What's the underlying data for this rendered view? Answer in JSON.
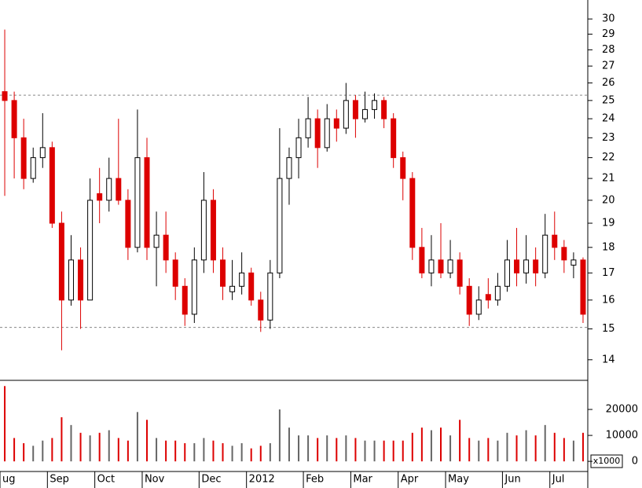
{
  "chart_data": {
    "type": "candlestick",
    "categories": [
      "ug",
      null,
      null,
      null,
      null,
      "Sep",
      null,
      null,
      null,
      null,
      "Oct",
      null,
      null,
      null,
      null,
      "Nov",
      null,
      null,
      null,
      null,
      null,
      "Dec",
      null,
      null,
      null,
      null,
      "2012",
      null,
      null,
      null,
      null,
      null,
      "Feb",
      null,
      null,
      null,
      null,
      "Mar",
      null,
      null,
      null,
      null,
      "Apr",
      null,
      null,
      null,
      null,
      "May",
      null,
      null,
      null,
      null,
      null,
      "Jun",
      null,
      null,
      null,
      null,
      "Jul",
      null,
      null,
      null
    ],
    "open": [
      25.5,
      25,
      23,
      21,
      22,
      22.5,
      19,
      16,
      17.5,
      16,
      20.3,
      20,
      21,
      20,
      18,
      22,
      18,
      18.5,
      17.5,
      16.5,
      15.5,
      17.5,
      20,
      17.5,
      16.3,
      16.5,
      17,
      16,
      15.3,
      17,
      21,
      22,
      23,
      24,
      22.5,
      24,
      23.5,
      25,
      24,
      24.5,
      25,
      24,
      22,
      21,
      18,
      17,
      17.5,
      17,
      17.5,
      16.5,
      15.5,
      16.2,
      16,
      16.5,
      17.5,
      17,
      17.5,
      17,
      18.5,
      18,
      17.3,
      17.5
    ],
    "high": [
      29.3,
      25.5,
      24,
      22.5,
      24.3,
      22.8,
      19.5,
      18.5,
      18,
      21,
      21.5,
      22,
      24,
      20.5,
      24.5,
      23,
      19.5,
      19.5,
      17.8,
      16.8,
      18,
      21.3,
      20.5,
      18,
      17.5,
      17.8,
      17.2,
      16.3,
      17.5,
      23.5,
      22.5,
      24,
      25.2,
      24.5,
      24.8,
      24.5,
      26,
      25.3,
      25.5,
      25.4,
      25.2,
      24.3,
      22.3,
      21.3,
      18.8,
      18.5,
      19,
      18.3,
      17.8,
      16.8,
      16.5,
      16.8,
      17,
      18.3,
      18.8,
      18.5,
      18,
      19.4,
      19.5,
      18.3,
      17.8,
      17.6
    ],
    "low": [
      20.2,
      21,
      20.5,
      20.8,
      21.5,
      18.8,
      14.3,
      15.8,
      15,
      16,
      19,
      19.5,
      19.8,
      17.5,
      17.8,
      17.5,
      16.5,
      17,
      16,
      15.1,
      15.2,
      17,
      17,
      16,
      16,
      16.2,
      15.8,
      14.9,
      15,
      16.8,
      19.8,
      21,
      22.5,
      21.5,
      22.3,
      22.8,
      23.2,
      23,
      23.8,
      24,
      23.5,
      21.5,
      20,
      17.5,
      16.8,
      16.5,
      16.8,
      16.8,
      16.2,
      15.1,
      15.3,
      15.7,
      15.8,
      16.3,
      16.5,
      16.6,
      16.5,
      16.8,
      17.5,
      17,
      16.8,
      15.2
    ],
    "close": [
      25,
      23,
      21,
      22,
      22.5,
      19,
      16,
      17.5,
      16,
      20,
      20,
      21,
      20,
      18,
      22,
      18,
      18.5,
      17.5,
      16.5,
      15.5,
      17.5,
      20,
      17.5,
      16.5,
      16.5,
      17,
      16,
      15.3,
      17,
      21,
      22,
      23,
      24,
      22.5,
      24,
      23.5,
      25,
      24,
      24.5,
      25,
      24,
      22,
      21,
      18,
      17,
      17.5,
      17,
      17.5,
      16.5,
      15.5,
      16,
      16,
      16.5,
      17.5,
      17,
      17.5,
      17,
      18.5,
      18,
      17.5,
      17.5,
      15.5
    ],
    "up_color": "#000000",
    "down_color": "#dd0000",
    "log_scale": true,
    "ylim": [
      13.37,
      31.3
    ],
    "yticks": [
      14,
      15,
      16,
      17,
      18,
      19,
      20,
      21,
      22,
      23,
      24,
      25,
      26,
      27,
      28,
      29,
      30
    ],
    "reference_lines": [
      25.3,
      15.05
    ],
    "volume": {
      "values": [
        29000,
        9000,
        7000,
        6000,
        8000,
        9000,
        17000,
        14000,
        11000,
        10000,
        11000,
        12000,
        9000,
        8000,
        19000,
        16000,
        9000,
        8000,
        8000,
        7000,
        7000,
        9000,
        8000,
        7000,
        6000,
        7000,
        5000,
        6000,
        7000,
        20000,
        13000,
        10000,
        10000,
        9000,
        10000,
        9000,
        10000,
        9000,
        8000,
        8000,
        8000,
        8000,
        8000,
        11000,
        13000,
        12000,
        13000,
        10000,
        16000,
        9000,
        8000,
        9000,
        8000,
        11000,
        10000,
        12000,
        10000,
        14000,
        11000,
        9000,
        8000,
        11000
      ],
      "ylim": [
        -3900,
        30000
      ],
      "yticks": [
        0,
        10000,
        20000
      ],
      "unit_label": "x1000"
    }
  }
}
